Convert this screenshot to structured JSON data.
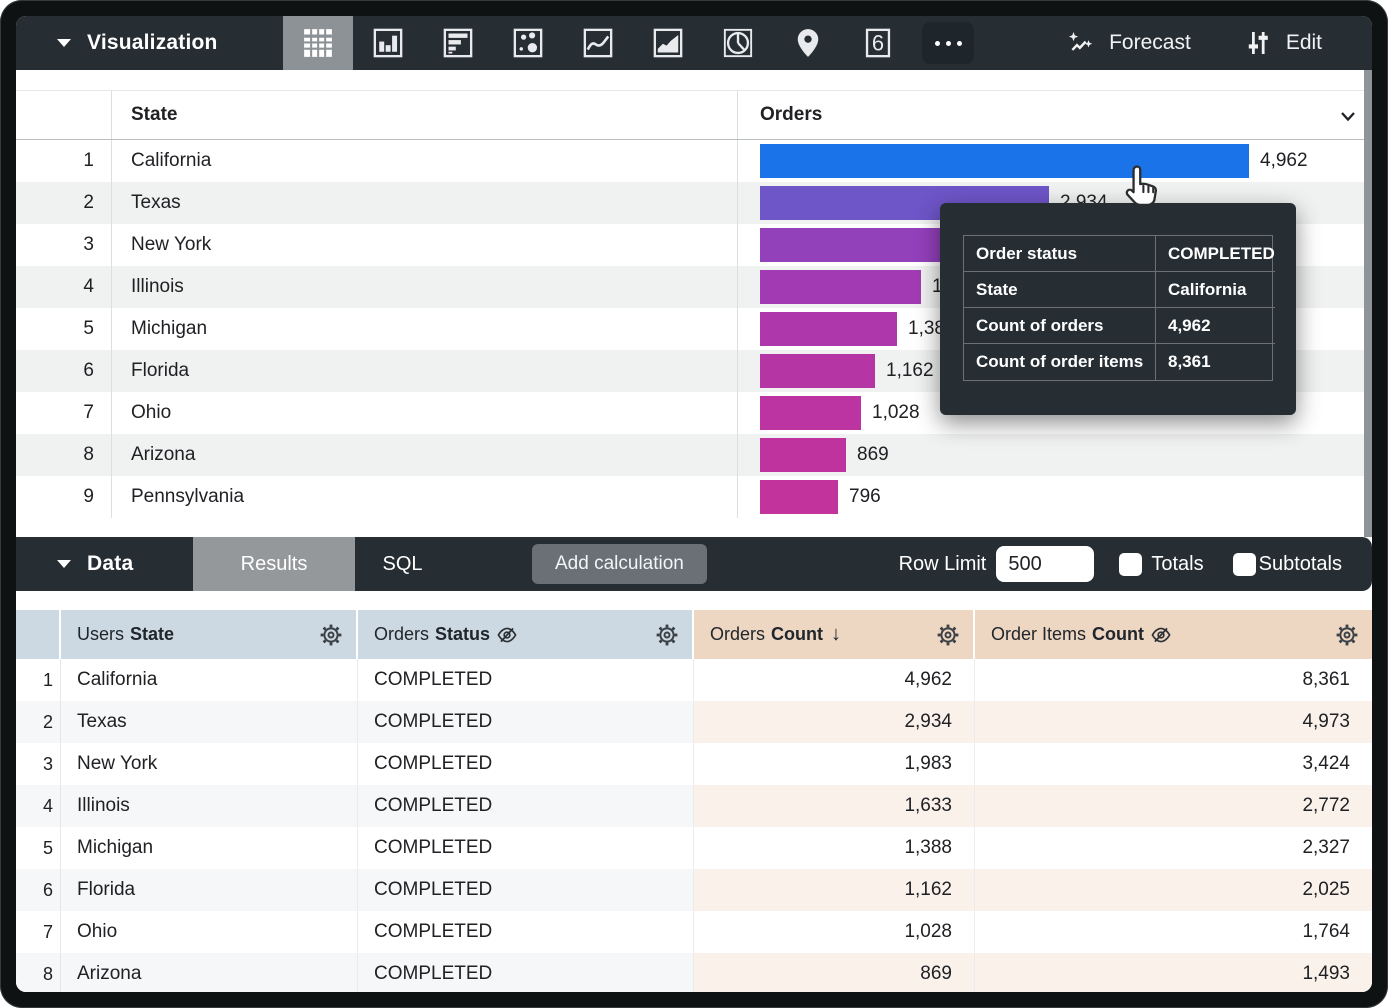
{
  "toolbar": {
    "title": "Visualization",
    "viz_types": [
      {
        "icon": "table-chart-icon",
        "selected": true
      },
      {
        "icon": "column-chart-icon",
        "selected": false
      },
      {
        "icon": "bar-chart-icon",
        "selected": false
      },
      {
        "icon": "scatter-plot-icon",
        "selected": false
      },
      {
        "icon": "line-chart-icon",
        "selected": false
      },
      {
        "icon": "area-chart-icon",
        "selected": false
      },
      {
        "icon": "pie-chart-icon",
        "selected": false
      },
      {
        "icon": "map-pin-icon",
        "selected": false
      },
      {
        "icon": "single-value-icon",
        "selected": false,
        "glyph": "6"
      },
      {
        "icon": "more-icon",
        "selected": false
      }
    ],
    "forecast_label": "Forecast",
    "edit_label": "Edit"
  },
  "viz": {
    "columns": {
      "state": "State",
      "orders": "Orders"
    },
    "max_value": 4962,
    "rows": [
      {
        "n": "1",
        "state": "California",
        "value": "4,962",
        "v": 4962,
        "color": "#1a73e8"
      },
      {
        "n": "2",
        "state": "Texas",
        "value": "2,934",
        "v": 2934,
        "color": "#6e55c8"
      },
      {
        "n": "3",
        "state": "New York",
        "value": "1,983",
        "v": 1983,
        "color": "#9340bb"
      },
      {
        "n": "4",
        "state": "Illinois",
        "value": "1,633",
        "v": 1633,
        "color": "#a23bb3"
      },
      {
        "n": "5",
        "state": "Michigan",
        "value": "1,388",
        "v": 1388,
        "color": "#ad37ab"
      },
      {
        "n": "6",
        "state": "Florida",
        "value": "1,162",
        "v": 1162,
        "color": "#b535a5"
      },
      {
        "n": "7",
        "state": "Ohio",
        "value": "1,028",
        "v": 1028,
        "color": "#bb34a1"
      },
      {
        "n": "8",
        "state": "Arizona",
        "value": "869",
        "v": 869,
        "color": "#bf339e"
      },
      {
        "n": "9",
        "state": "Pennsylvania",
        "value": "796",
        "v": 796,
        "color": "#c2339b"
      }
    ]
  },
  "tooltip": {
    "rows": [
      {
        "label": "Order status",
        "value": "COMPLETED"
      },
      {
        "label": "State",
        "value": "California"
      },
      {
        "label": "Count of orders",
        "value": "4,962"
      },
      {
        "label": "Count of order items",
        "value": "8,361"
      }
    ]
  },
  "data_bar": {
    "title": "Data",
    "results_tab": "Results",
    "sql_tab": "SQL",
    "add_calculation_label": "Add calculation",
    "row_limit_label": "Row Limit",
    "row_limit_value": "500",
    "totals_label": "Totals",
    "subtotals_label": "Subtotals",
    "totals_checked": false,
    "subtotals_checked": false
  },
  "data_table": {
    "headers": [
      {
        "prefix": "Users",
        "field": "State",
        "type": "dimension",
        "hidden": false,
        "sorted": false
      },
      {
        "prefix": "Orders",
        "field": "Status",
        "type": "dimension",
        "hidden": true,
        "sorted": false
      },
      {
        "prefix": "Orders",
        "field": "Count",
        "type": "measure",
        "hidden": false,
        "sorted": true,
        "sort_dir": "desc"
      },
      {
        "prefix": "Order Items",
        "field": "Count",
        "type": "measure",
        "hidden": true,
        "sorted": false
      }
    ],
    "rows": [
      {
        "n": "1",
        "state": "California",
        "status": "COMPLETED",
        "orders_count": "4,962",
        "order_items_count": "8,361"
      },
      {
        "n": "2",
        "state": "Texas",
        "status": "COMPLETED",
        "orders_count": "2,934",
        "order_items_count": "4,973"
      },
      {
        "n": "3",
        "state": "New York",
        "status": "COMPLETED",
        "orders_count": "1,983",
        "order_items_count": "3,424"
      },
      {
        "n": "4",
        "state": "Illinois",
        "status": "COMPLETED",
        "orders_count": "1,633",
        "order_items_count": "2,772"
      },
      {
        "n": "5",
        "state": "Michigan",
        "status": "COMPLETED",
        "orders_count": "1,388",
        "order_items_count": "2,327"
      },
      {
        "n": "6",
        "state": "Florida",
        "status": "COMPLETED",
        "orders_count": "1,162",
        "order_items_count": "2,025"
      },
      {
        "n": "7",
        "state": "Ohio",
        "status": "COMPLETED",
        "orders_count": "1,028",
        "order_items_count": "1,764"
      },
      {
        "n": "8",
        "state": "Arizona",
        "status": "COMPLETED",
        "orders_count": "869",
        "order_items_count": "1,493"
      }
    ]
  },
  "chart_data": {
    "type": "bar",
    "orientation": "horizontal",
    "series_label": "Orders Count",
    "categories": [
      "California",
      "Texas",
      "New York",
      "Illinois",
      "Michigan",
      "Florida",
      "Ohio",
      "Arizona",
      "Pennsylvania"
    ],
    "values": [
      4962,
      2934,
      1983,
      1633,
      1388,
      1162,
      1028,
      869,
      796
    ],
    "bar_colors": [
      "#1a73e8",
      "#6e55c8",
      "#9340bb",
      "#a23bb3",
      "#ad37ab",
      "#b535a5",
      "#bb34a1",
      "#bf339e",
      "#c2339b"
    ],
    "xlim": [
      0,
      4962
    ]
  },
  "colors": {
    "toolbar_bg": "#262d33",
    "selected_tab_bg": "#8d9296",
    "dimension_header_bg": "#ccd8e2",
    "measure_header_bg": "#edd6c2"
  }
}
